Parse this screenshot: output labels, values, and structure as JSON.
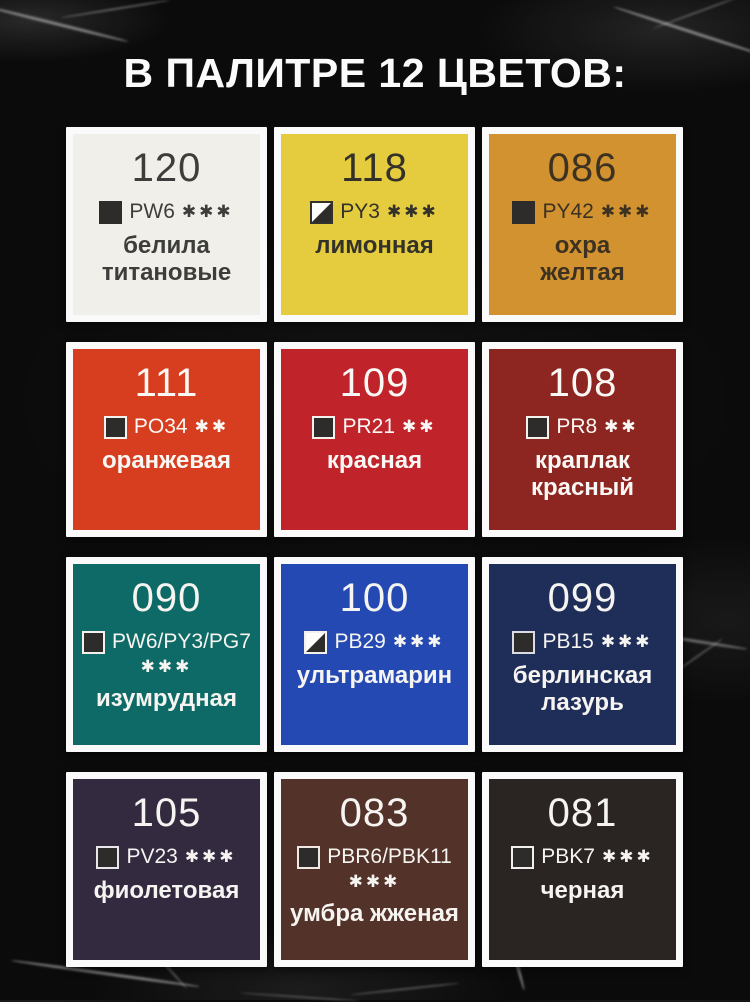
{
  "header": {
    "title": "В ПАЛИТРЕ 12 ЦВЕТОВ:"
  },
  "palette": {
    "swatches": [
      {
        "number": "120",
        "code": "PW6",
        "stars": "✱✱✱",
        "name": "белила\nтитановые",
        "icon": "filled",
        "icon_border": "transparent",
        "bg": "#f1efe9",
        "fg": "#3d3d3b"
      },
      {
        "number": "118",
        "code": "PY3",
        "stars": "✱✱✱",
        "name": "лимонная",
        "icon": "half",
        "icon_border": "#33312b",
        "bg": "#e4cc3e",
        "fg": "#33312a"
      },
      {
        "number": "086",
        "code": "PY42",
        "stars": "✱✱✱",
        "name": "охра\nжелтая",
        "icon": "filled",
        "icon_border": "transparent",
        "bg": "#d2922f",
        "fg": "#3d3222"
      },
      {
        "number": "111",
        "code": "PO34",
        "stars": "✱✱",
        "name": "оранжевая",
        "icon": "filled",
        "icon_border": "#f4f1ec",
        "bg": "#d73e1f",
        "fg": "#faf8f5"
      },
      {
        "number": "109",
        "code": "PR21",
        "stars": "✱✱",
        "name": "красная",
        "icon": "filled",
        "icon_border": "#f4f1ec",
        "bg": "#c0232a",
        "fg": "#faf8f5"
      },
      {
        "number": "108",
        "code": "PR8",
        "stars": "✱✱",
        "name": "краплак\nкрасный",
        "icon": "filled",
        "icon_border": "#f4f1ec",
        "bg": "#8d2521",
        "fg": "#faf8f5"
      },
      {
        "number": "090",
        "code": "PW6/PY3/PG7",
        "stars": "✱✱✱",
        "name": "изумрудная",
        "icon": "filled",
        "icon_border": "#f4f1ec",
        "bg": "#0e6a66",
        "fg": "#f6f4f1"
      },
      {
        "number": "100",
        "code": "PB29",
        "stars": "✱✱✱",
        "name": "ультрамарин",
        "icon": "half",
        "icon_border": "#f4f1ec",
        "bg": "#2449b3",
        "fg": "#f6f4f1"
      },
      {
        "number": "099",
        "code": "PB15",
        "stars": "✱✱✱",
        "name": "берлинская\nлазурь",
        "icon": "filled",
        "icon_border": "#d9dce2",
        "bg": "#1f2d59",
        "fg": "#f6f4f1"
      },
      {
        "number": "105",
        "code": "PV23",
        "stars": "✱✱✱",
        "name": "фиолетовая",
        "icon": "filled",
        "icon_border": "#e8e6ea",
        "bg": "#332a40",
        "fg": "#f6f4f1"
      },
      {
        "number": "083",
        "code": "PBR6/PBK11",
        "stars": "✱✱✱",
        "name": "умбра жженая",
        "icon": "filled",
        "icon_border": "#efe9e4",
        "bg": "#523229",
        "fg": "#f6f4f1"
      },
      {
        "number": "081",
        "code": "PBK7",
        "stars": "✱✱✱",
        "name": "черная",
        "icon": "filled",
        "icon_border": "#f2f0ee",
        "bg": "#2a2423",
        "fg": "#f6f4f1"
      }
    ]
  }
}
